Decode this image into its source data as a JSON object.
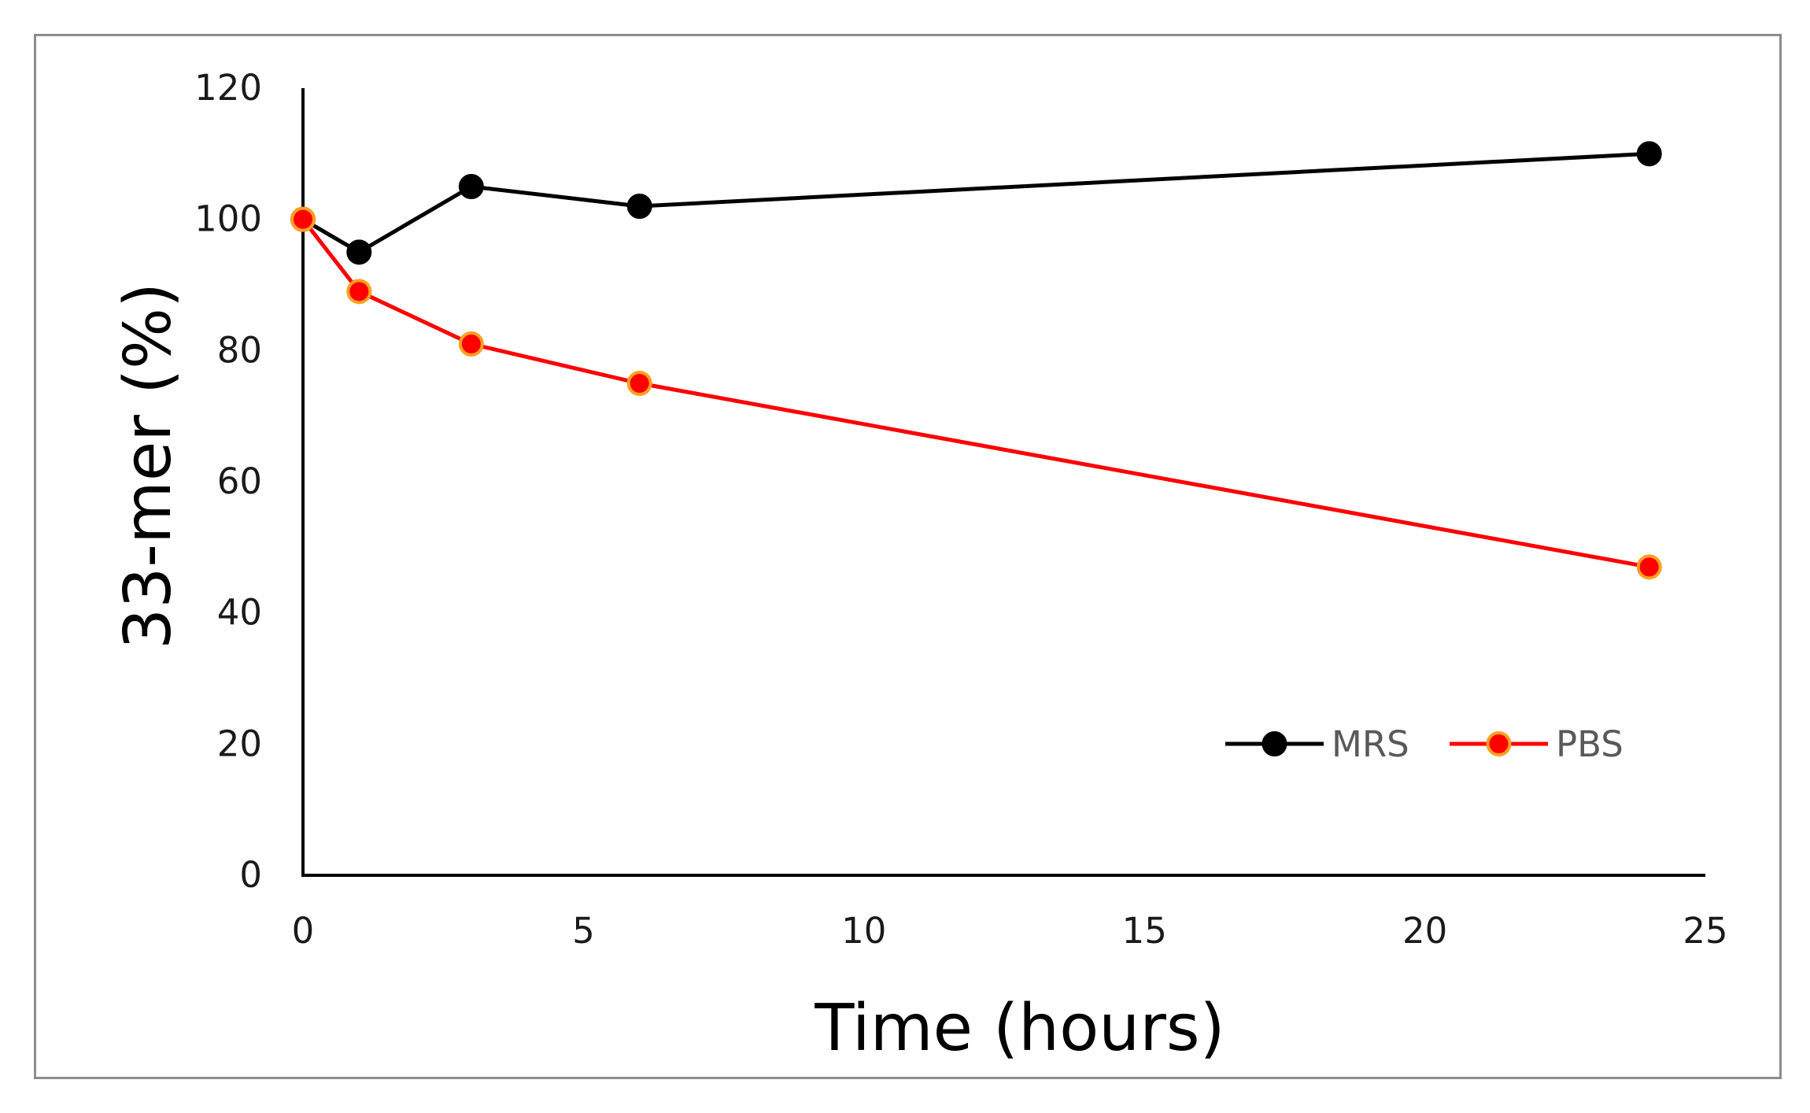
{
  "chart_data": {
    "type": "line",
    "title": "",
    "xlabel": "Time (hours)",
    "ylabel": "33-mer (%)",
    "xlim": [
      0,
      25
    ],
    "ylim": [
      0,
      120
    ],
    "xticks": [
      0,
      5,
      10,
      15,
      20,
      25
    ],
    "yticks": [
      0,
      20,
      40,
      60,
      80,
      100,
      120
    ],
    "grid": false,
    "legend_position": "bottom-right",
    "series": [
      {
        "name": "MRS",
        "color": "#000000",
        "marker_fill": "#000000",
        "marker_edge": "#000000",
        "x": [
          0,
          1,
          3,
          6,
          24
        ],
        "y": [
          100,
          95,
          105,
          102,
          110
        ]
      },
      {
        "name": "PBS",
        "color": "#ff0000",
        "marker_fill": "#ff0000",
        "marker_edge": "#ffa020",
        "x": [
          0,
          1,
          3,
          6,
          24
        ],
        "y": [
          100,
          89,
          81,
          75,
          47
        ]
      }
    ]
  }
}
